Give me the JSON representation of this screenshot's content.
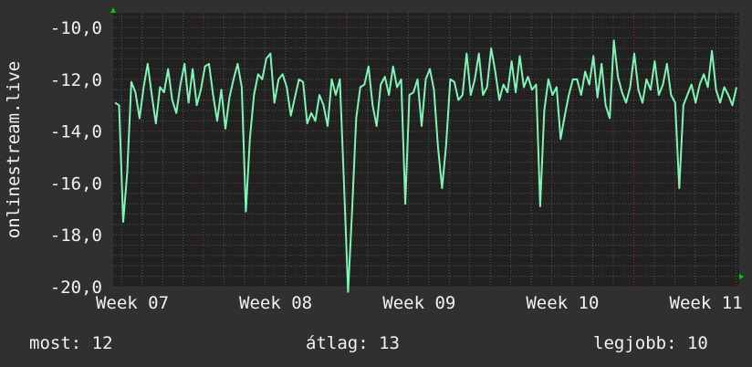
{
  "chart_data": {
    "type": "line",
    "title": "",
    "ylabel": "onlinestream.live",
    "xlabel": "",
    "ylim": [
      -20.0,
      -9.43
    ],
    "yticks": [
      -10,
      -12,
      -14,
      -16,
      -18,
      -20
    ],
    "ytick_labels": [
      "-10,0",
      "-12,0",
      "-14,0",
      "-16,0",
      "-18,0",
      "-20,0"
    ],
    "xtick_labels": [
      "Week 07",
      "Week 08",
      "Week 09",
      "Week 10",
      "Week 11"
    ],
    "grid": true,
    "colors": {
      "line": "#7ff5b5",
      "plot_bg": "#212121",
      "canvas_bg": "#303030",
      "grid_minor": "#555555",
      "grid_major": "#7a3535",
      "arrow": "#00cc00"
    },
    "series": [
      {
        "values": [
          -12.9,
          -13.0,
          -17.5,
          -15.6,
          -12.1,
          -12.5,
          -13.5,
          -12.3,
          -11.4,
          -12.6,
          -13.7,
          -12.3,
          -12.5,
          -11.6,
          -12.8,
          -13.3,
          -12.2,
          -11.4,
          -12.9,
          -11.6,
          -13.0,
          -12.4,
          -11.5,
          -11.4,
          -12.6,
          -13.6,
          -12.4,
          -13.9,
          -12.7,
          -12.0,
          -11.4,
          -12.3,
          -17.1,
          -14.3,
          -12.6,
          -11.8,
          -12.0,
          -11.2,
          -11.0,
          -12.9,
          -12.0,
          -11.8,
          -12.3,
          -13.4,
          -12.7,
          -12.0,
          -12.1,
          -13.7,
          -13.3,
          -13.6,
          -12.6,
          -13.0,
          -13.8,
          -12.0,
          -12.6,
          -12.0,
          -16.0,
          -20.2,
          -17.0,
          -13.5,
          -12.3,
          -12.2,
          -11.5,
          -13.0,
          -13.8,
          -12.2,
          -11.9,
          -12.6,
          -11.5,
          -12.3,
          -12.0,
          -16.8,
          -12.6,
          -12.5,
          -12.0,
          -13.8,
          -12.0,
          -11.6,
          -12.4,
          -14.6,
          -16.2,
          -14.5,
          -12.0,
          -12.1,
          -12.8,
          -12.6,
          -11.0,
          -12.6,
          -12.0,
          -11.0,
          -12.6,
          -12.3,
          -10.8,
          -11.7,
          -12.8,
          -12.2,
          -12.5,
          -11.3,
          -12.5,
          -11.1,
          -12.3,
          -11.9,
          -12.4,
          -12.2,
          -16.9,
          -13.2,
          -12.0,
          -12.6,
          -12.3,
          -14.3,
          -13.4,
          -12.6,
          -12.0,
          -12.0,
          -12.6,
          -11.7,
          -12.2,
          -11.1,
          -12.7,
          -11.4,
          -13.0,
          -13.5,
          -10.5,
          -11.9,
          -12.5,
          -12.9,
          -12.3,
          -11.0,
          -12.4,
          -12.9,
          -12.0,
          -12.4,
          -11.3,
          -12.6,
          -12.2,
          -11.4,
          -12.6,
          -12.9,
          -16.2,
          -13.0,
          -12.6,
          -12.2,
          -12.9,
          -12.2,
          -11.8,
          -12.3,
          -10.9,
          -12.4,
          -12.9,
          -12.3,
          -12.6,
          -13.0,
          -12.3
        ]
      }
    ]
  },
  "legend": {
    "current": "most: 12",
    "average": "átlag: 13",
    "max": "legjobb: 10"
  }
}
